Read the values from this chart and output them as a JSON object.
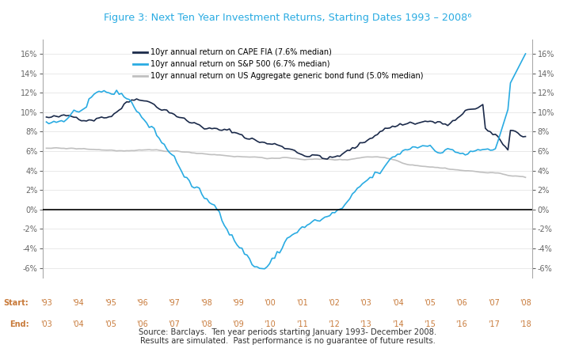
{
  "title": "Figure 3: Next Ten Year Investment Returns, Starting Dates 1993 – 2008⁶",
  "title_color": "#29ABE2",
  "background_color": "#ffffff",
  "ylim": [
    -0.07,
    0.175
  ],
  "yticks": [
    -0.06,
    -0.04,
    -0.02,
    0.0,
    0.02,
    0.04,
    0.06,
    0.08,
    0.1,
    0.12,
    0.14,
    0.16
  ],
  "source_text": "Source: Barclays.  Ten year periods starting January 1993- December 2008.\nResults are simulated.  Past performance is no guarantee of future results.",
  "legend": [
    {
      "label": "10yr annual return on CAPE FIA (7.6% median)",
      "color": "#1B2A4A",
      "lw": 1.2
    },
    {
      "label": "10yr annual return on S&P 500 (6.7% median)",
      "color": "#29ABE2",
      "lw": 1.2
    },
    {
      "label": "10yr annual return on US Aggregate generic bond fund (5.0% median)",
      "color": "#C0C0C0",
      "lw": 1.2
    }
  ],
  "start_labels": [
    "'93",
    "'94",
    "'95",
    "'96",
    "'97",
    "'98",
    "'99",
    "'00",
    "'01",
    "'02",
    "'03",
    "'04",
    "'05",
    "'06",
    "'07",
    "'08"
  ],
  "end_labels": [
    "'03",
    "'04",
    "'05",
    "'06",
    "'07",
    "'08",
    "'09",
    "'10",
    "'11",
    "'12",
    "'13",
    "'14",
    "'15",
    "'16",
    "'17",
    "'18"
  ],
  "label_color": "#C87A3A",
  "tick_color": "#666666"
}
